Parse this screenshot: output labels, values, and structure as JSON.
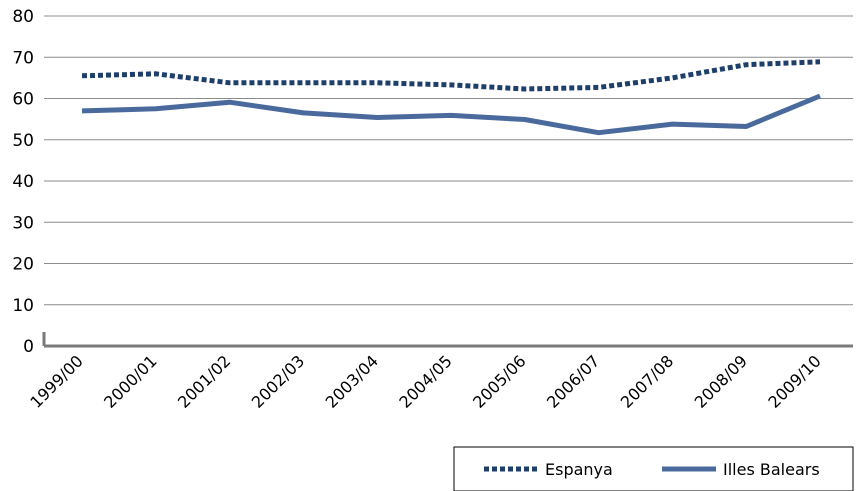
{
  "chart_data": {
    "type": "line",
    "categories": [
      "1999/00",
      "2000/01",
      "2001/02",
      "2002/03",
      "2003/04",
      "2004/05",
      "2005/06",
      "2006/07",
      "2007/08",
      "2008/09",
      "2009/10"
    ],
    "series": [
      {
        "name": "Espanya",
        "values": [
          65.5,
          66.0,
          63.8,
          63.8,
          63.8,
          63.3,
          62.3,
          62.7,
          65.0,
          68.2,
          68.9
        ],
        "color": "#1f3f6b",
        "style": "dotted"
      },
      {
        "name": "Illes Balears",
        "values": [
          57.0,
          57.5,
          59.1,
          56.5,
          55.4,
          55.9,
          54.9,
          51.7,
          53.8,
          53.2,
          60.6
        ],
        "color": "#4a6a9e",
        "style": "solid"
      }
    ],
    "yticks": [
      "0",
      "10",
      "20",
      "30",
      "40",
      "50",
      "60",
      "70",
      "80"
    ],
    "ylim": [
      0,
      80
    ],
    "grid": true,
    "legend_position": "bottom-right"
  }
}
